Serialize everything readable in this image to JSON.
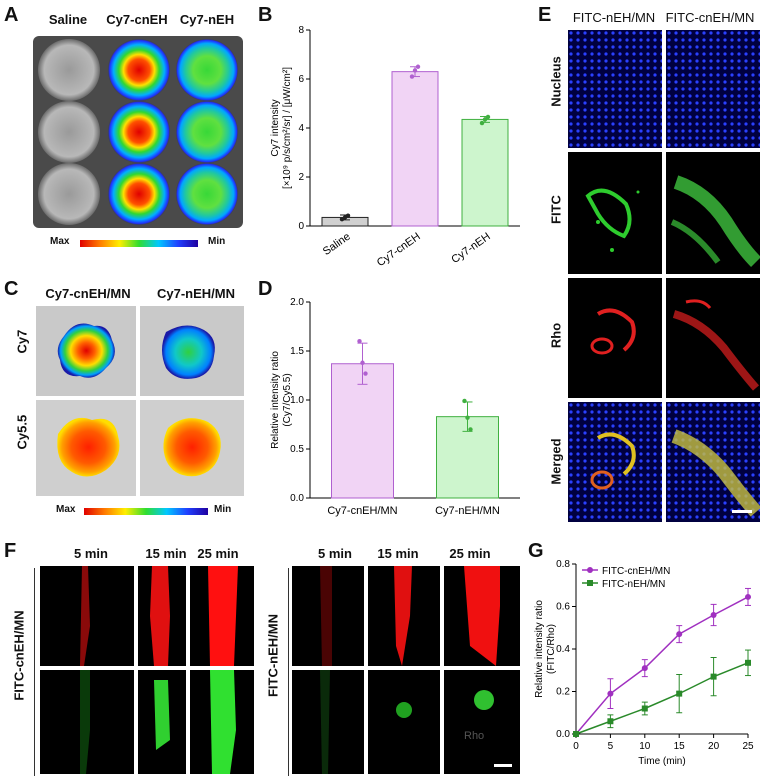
{
  "panels": {
    "A": "A",
    "B": "B",
    "C": "C",
    "D": "D",
    "E": "E",
    "F": "F",
    "G": "G"
  },
  "panelA": {
    "cols": [
      "Saline",
      "Cy7-cnEH",
      "Cy7-nEH"
    ],
    "scale": {
      "max": "Max",
      "min": "Min"
    }
  },
  "panelC": {
    "cols": [
      "Cy7-cnEH/MN",
      "Cy7-nEH/MN"
    ],
    "rows": [
      "Cy7",
      "Cy5.5"
    ],
    "scale": {
      "max": "Max",
      "min": "Min"
    }
  },
  "panelE": {
    "cols": [
      "FITC-nEH/MN",
      "FITC-cnEH/MN"
    ],
    "rows": [
      "Nucleus",
      "FITC",
      "Rho",
      "Merged"
    ]
  },
  "panelF": {
    "times": [
      "5 min",
      "15 min",
      "25 min"
    ],
    "groups": [
      "FITC-cnEH/MN",
      "FITC-nEH/MN"
    ],
    "watermark": "Rho"
  },
  "chart_data": [
    {
      "id": "B",
      "type": "bar",
      "categories": [
        "Saline",
        "Cy7-cnEH",
        "Cy7-nEH"
      ],
      "values": [
        0.35,
        6.3,
        4.35
      ],
      "errors": [
        0.1,
        0.2,
        0.12
      ],
      "points": [
        [
          0.28,
          0.35,
          0.42
        ],
        [
          6.1,
          6.35,
          6.5
        ],
        [
          4.2,
          4.35,
          4.45
        ]
      ],
      "ylabel_lines": [
        "Cy7 intensity",
        "[×10⁹ p/s/cm²/sr] / [μW/cm²]"
      ],
      "ylim": [
        0,
        8
      ],
      "yticks": [
        "0",
        "2",
        "4",
        "6",
        "8"
      ],
      "colors": {
        "fill": [
          "#d0d0d0",
          "#f1d4f5",
          "#cdf5cd"
        ],
        "stroke": [
          "#222222",
          "#b060d0",
          "#40b040"
        ]
      }
    },
    {
      "id": "D",
      "type": "bar",
      "categories": [
        "Cy7-cnEH/MN",
        "Cy7-nEH/MN"
      ],
      "values": [
        1.37,
        0.83
      ],
      "errors": [
        0.21,
        0.15
      ],
      "points": [
        [
          1.6,
          1.38,
          1.27
        ],
        [
          0.99,
          0.82,
          0.7
        ]
      ],
      "ylabel_lines": [
        "Relative intensity ratio",
        "(Cy7/Cy5.5)"
      ],
      "ylim": [
        0,
        2
      ],
      "yticks": [
        "0.0",
        "0.5",
        "1.0",
        "1.5",
        "2.0"
      ],
      "colors": {
        "fill": [
          "#f1d4f5",
          "#cdf5cd"
        ],
        "stroke": [
          "#b060d0",
          "#40b040"
        ]
      }
    },
    {
      "id": "G",
      "type": "line",
      "x": [
        0,
        5,
        10,
        15,
        20,
        25
      ],
      "series": [
        {
          "name": "FITC-cnEH/MN",
          "values": [
            0.0,
            0.19,
            0.31,
            0.47,
            0.56,
            0.645
          ],
          "errors": [
            0,
            0.07,
            0.04,
            0.04,
            0.05,
            0.04
          ],
          "color": "#a030c0"
        },
        {
          "name": "FITC-nEH/MN",
          "values": [
            0.0,
            0.06,
            0.12,
            0.19,
            0.27,
            0.335
          ],
          "errors": [
            0,
            0.03,
            0.03,
            0.09,
            0.09,
            0.06
          ],
          "color": "#2a8a2a"
        }
      ],
      "xlabel": "Time (min)",
      "ylabel_lines": [
        "Relative intensity ratio",
        "(FITC/Rho)"
      ],
      "xlim": [
        0,
        25
      ],
      "ylim": [
        0,
        0.8
      ],
      "xticks": [
        "0",
        "5",
        "10",
        "15",
        "20",
        "25"
      ],
      "yticks": [
        "0.0",
        "0.2",
        "0.4",
        "0.6",
        "0.8"
      ],
      "legend": "top-left"
    }
  ]
}
